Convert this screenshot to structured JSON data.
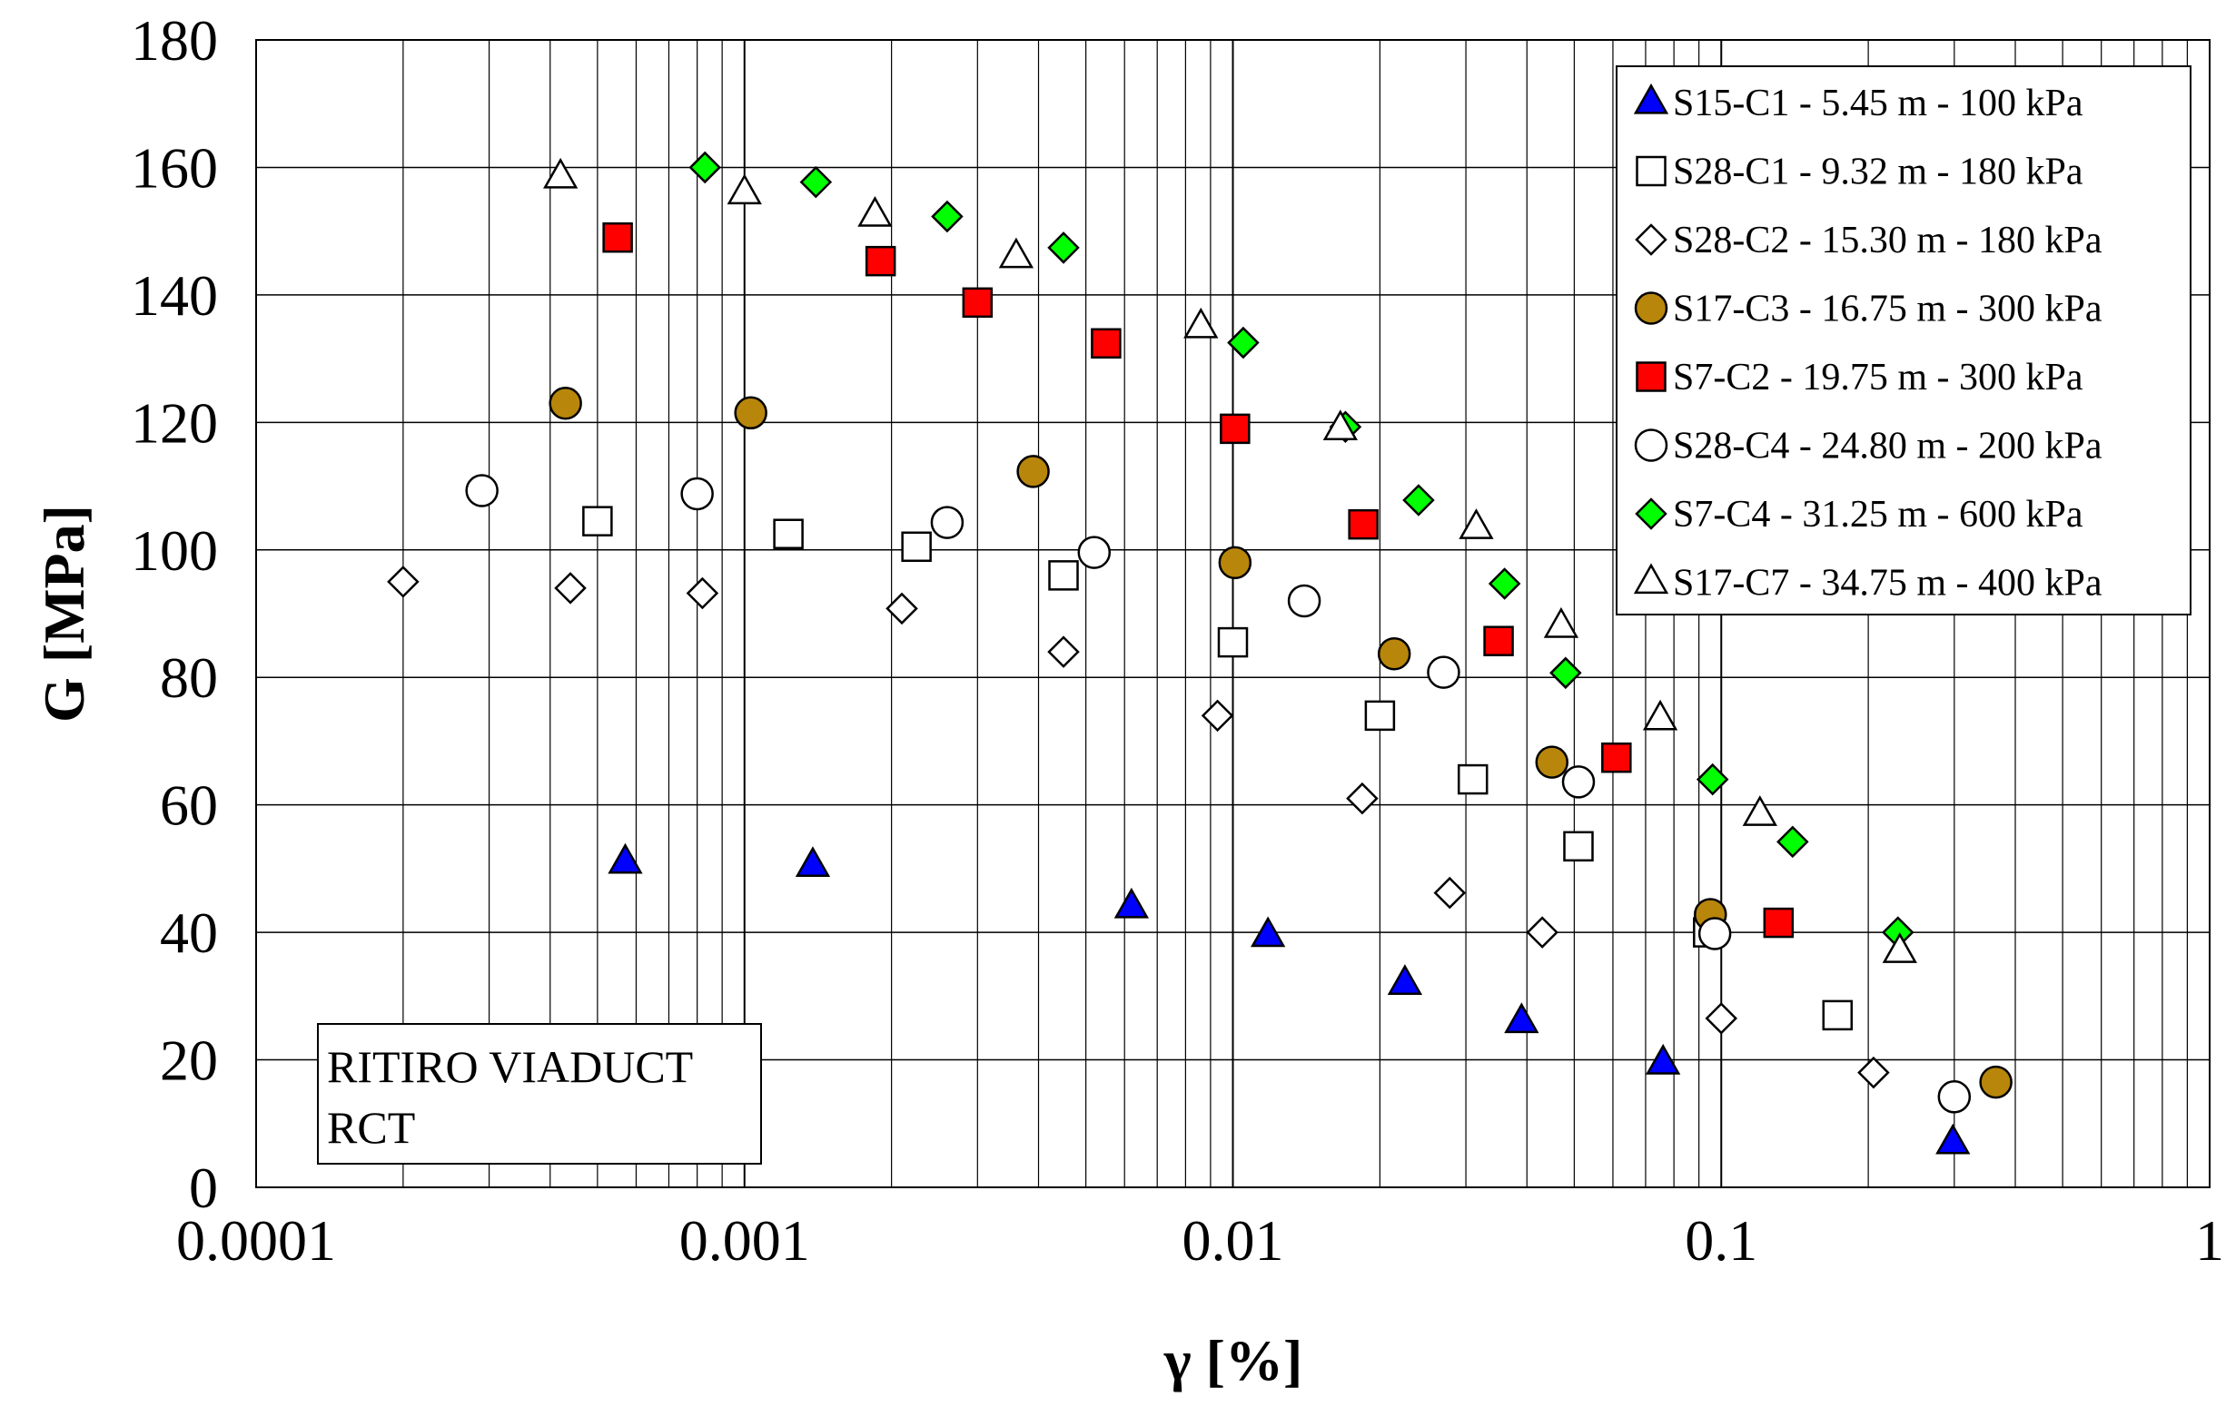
{
  "chart_data": {
    "type": "scatter",
    "xscale": "log",
    "xlim": [
      0.0001,
      1
    ],
    "ylim": [
      0,
      180
    ],
    "xlabel": "γ [%]",
    "ylabel": "G [MPa]",
    "xticks": [
      "0.0001",
      "0.001",
      "0.01",
      "0.1",
      "1"
    ],
    "yticks": [
      "0",
      "20",
      "40",
      "60",
      "80",
      "100",
      "120",
      "140",
      "160",
      "180"
    ],
    "grid": true,
    "legend_position": "top-right",
    "annotation": [
      "RITIRO VIADUCT",
      "RCT"
    ],
    "series": [
      {
        "name": "S15-C1 - 5.45 m - 100 kPa",
        "marker": "triangle",
        "fill": "#0000ff",
        "points": [
          [
            0.00057,
            51
          ],
          [
            0.00138,
            50.5
          ],
          [
            0.0062,
            44
          ],
          [
            0.0118,
            39.5
          ],
          [
            0.0225,
            32
          ],
          [
            0.039,
            26
          ],
          [
            0.076,
            19.5
          ],
          [
            0.298,
            7
          ]
        ]
      },
      {
        "name": "S28-C1 - 9.32 m - 180 kPa",
        "marker": "square",
        "fill": "#ffffff",
        "points": [
          [
            0.0005,
            104.5
          ],
          [
            0.00123,
            102.5
          ],
          [
            0.00225,
            100.5
          ],
          [
            0.0045,
            96
          ],
          [
            0.01,
            85.5
          ],
          [
            0.02,
            74
          ],
          [
            0.031,
            64
          ],
          [
            0.051,
            53.5
          ],
          [
            0.094,
            40
          ],
          [
            0.173,
            27
          ]
        ]
      },
      {
        "name": "S28-C2 - 15.30 m - 180 kPa",
        "marker": "diamond",
        "fill": "#ffffff",
        "points": [
          [
            0.0002,
            95
          ],
          [
            0.00044,
            94
          ],
          [
            0.00082,
            93.2
          ],
          [
            0.0021,
            90.8
          ],
          [
            0.0045,
            84
          ],
          [
            0.0093,
            74
          ],
          [
            0.0184,
            61
          ],
          [
            0.0278,
            46.2
          ],
          [
            0.043,
            40
          ],
          [
            0.1,
            26.5
          ],
          [
            0.205,
            18
          ]
        ]
      },
      {
        "name": "S17-C3 - 16.75 m - 300 kPa",
        "marker": "circle",
        "fill": "#b8860b",
        "points": [
          [
            0.00043,
            123
          ],
          [
            0.00103,
            121.5
          ],
          [
            0.0039,
            112.3
          ],
          [
            0.0101,
            98
          ],
          [
            0.0214,
            83.7
          ],
          [
            0.045,
            66.7
          ],
          [
            0.095,
            42.8
          ],
          [
            0.365,
            16.5
          ]
        ]
      },
      {
        "name": "S7-C2 - 19.75 m - 300 kPa",
        "marker": "square",
        "fill": "#ff0000",
        "points": [
          [
            0.00055,
            149
          ],
          [
            0.0019,
            145.3
          ],
          [
            0.003,
            138.8
          ],
          [
            0.0055,
            132.4
          ],
          [
            0.0101,
            119
          ],
          [
            0.0185,
            104
          ],
          [
            0.035,
            85.7
          ],
          [
            0.061,
            67.4
          ],
          [
            0.131,
            41.5
          ]
        ]
      },
      {
        "name": "S28-C4 - 24.80 m - 200 kPa",
        "marker": "circle",
        "fill": "#ffffff",
        "points": [
          [
            0.00029,
            109.3
          ],
          [
            0.0008,
            108.8
          ],
          [
            0.0026,
            104.3
          ],
          [
            0.0052,
            99.6
          ],
          [
            0.014,
            92
          ],
          [
            0.027,
            80.8
          ],
          [
            0.051,
            63.6
          ],
          [
            0.097,
            39.8
          ],
          [
            0.3,
            14.2
          ]
        ]
      },
      {
        "name": "S7-C4 - 31.25 m - 600 kPa",
        "marker": "diamond",
        "fill": "#00ff00",
        "points": [
          [
            0.00083,
            160
          ],
          [
            0.0014,
            157.7
          ],
          [
            0.0026,
            152.3
          ],
          [
            0.0045,
            147.4
          ],
          [
            0.0105,
            132.5
          ],
          [
            0.017,
            119.3
          ],
          [
            0.024,
            107.8
          ],
          [
            0.036,
            94.7
          ],
          [
            0.048,
            80.7
          ],
          [
            0.096,
            64
          ],
          [
            0.14,
            54.2
          ],
          [
            0.23,
            40
          ]
        ]
      },
      {
        "name": "S17-C7 - 34.75 m - 400 kPa",
        "marker": "triangle",
        "fill": "#ffffff",
        "points": [
          [
            0.00042,
            158.5
          ],
          [
            0.001,
            156
          ],
          [
            0.00185,
            152.5
          ],
          [
            0.0036,
            146
          ],
          [
            0.0086,
            135
          ],
          [
            0.0166,
            119
          ],
          [
            0.0315,
            103.5
          ],
          [
            0.047,
            88
          ],
          [
            0.075,
            73.5
          ],
          [
            0.12,
            58.5
          ],
          [
            0.232,
            37
          ]
        ]
      }
    ]
  }
}
